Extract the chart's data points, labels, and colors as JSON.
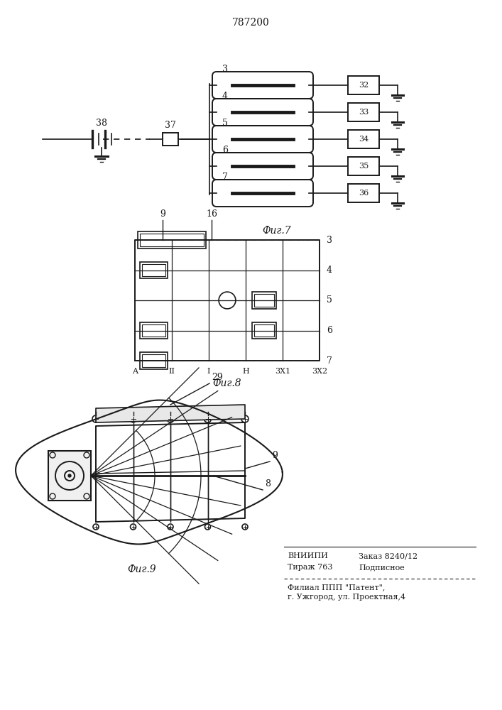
{
  "title": "787200",
  "fig7_label": "Фиг.7",
  "fig8_label": "Фиг.8",
  "fig9_label": "Фиг.9",
  "bg_color": "#ffffff",
  "line_color": "#1a1a1a",
  "fig7": {
    "sol_labels": [
      "3",
      "4",
      "5",
      "6",
      "7"
    ],
    "box_labels": [
      "32",
      "33",
      "34",
      "35",
      "36"
    ],
    "left_label": "38",
    "left2_label": "37"
  },
  "fig8": {
    "rows": [
      "3",
      "4",
      "5",
      "6",
      "7"
    ],
    "cols": [
      "A",
      "II",
      "I",
      "H",
      "3X1",
      "3X2"
    ],
    "label9": "9",
    "label16": "16"
  },
  "fig9": {
    "label29": "29",
    "label9": "9",
    "label8": "8"
  },
  "footer": {
    "vnipi": "ВНИИПИ",
    "zakaz": "Заказ 8240/12",
    "tirazh": "Тираж 763",
    "podpisnoe": "Подписное",
    "filial": "Филиал ППП \"Патент\",",
    "address": "г. Ужгород, ул. Проектная,4"
  }
}
